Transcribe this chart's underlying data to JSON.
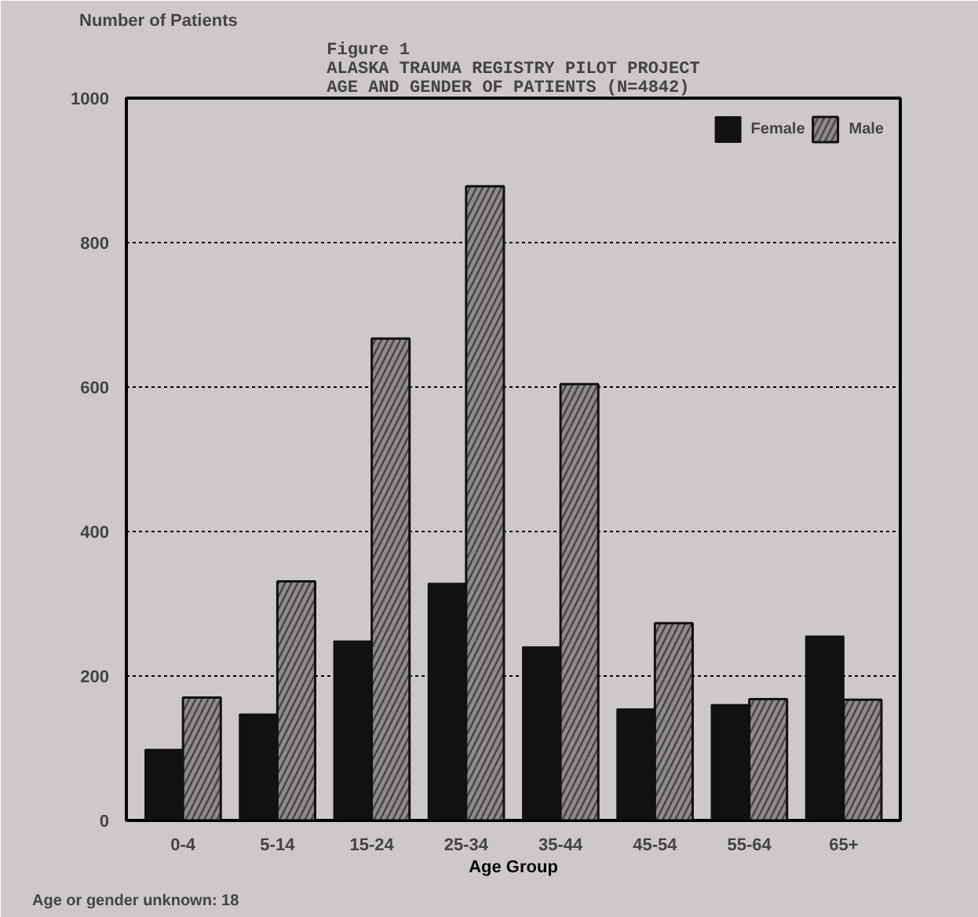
{
  "chart_data": {
    "type": "bar",
    "title": "Figure 1\nALASKA TRAUMA REGISTRY PILOT PROJECT\nAGE AND GENDER OF PATIENTS (N=4842)",
    "xlabel": "Age Group",
    "ylabel": "Number of Patients",
    "categories": [
      "0-4",
      "5-14",
      "15-24",
      "25-34",
      "35-44",
      "45-54",
      "55-64",
      "65+"
    ],
    "series": [
      {
        "name": "Female",
        "color": "#111111",
        "values": [
          98,
          147,
          248,
          328,
          240,
          154,
          160,
          255
        ]
      },
      {
        "name": "Male",
        "color": "#8f8b8b",
        "values": [
          170,
          331,
          667,
          878,
          604,
          273,
          168,
          167
        ]
      }
    ],
    "ylim": [
      0,
      1000
    ],
    "yticks": [
      0,
      200,
      400,
      600,
      800,
      1000
    ],
    "grid": "y",
    "legend": "top right",
    "annotations": [
      "Age or gender unknown: 18"
    ]
  }
}
